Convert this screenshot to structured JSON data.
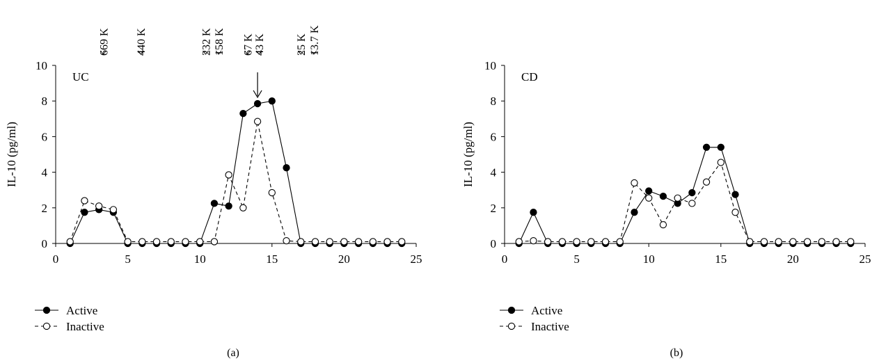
{
  "chart_data": [
    {
      "type": "line",
      "panel_tag": "UC",
      "caption": "(a)",
      "ylabel": "IL-10 (pg/ml)",
      "xlabel": "",
      "xlim": [
        0,
        25
      ],
      "ylim": [
        0,
        10
      ],
      "x_ticks": [
        0,
        5,
        10,
        15,
        20,
        25
      ],
      "y_ticks": [
        0,
        2,
        4,
        6,
        8,
        10
      ],
      "grid": false,
      "legend_position": "bottom-left",
      "series": [
        {
          "name": "Active",
          "style": "solid",
          "marker": "filled-circle",
          "x": [
            1,
            2,
            3,
            4,
            5,
            6,
            7,
            8,
            9,
            10,
            11,
            12,
            13,
            14,
            15,
            16,
            17,
            18,
            19,
            20,
            21,
            22,
            23,
            24
          ],
          "y": [
            0,
            1.75,
            1.9,
            1.75,
            0,
            0,
            0,
            0,
            0,
            0,
            2.25,
            2.1,
            7.3,
            7.85,
            8.0,
            4.25,
            0,
            0,
            0,
            0,
            0,
            0,
            0,
            0
          ]
        },
        {
          "name": "Inactive",
          "style": "dashed",
          "marker": "open-circle",
          "x": [
            1,
            2,
            3,
            4,
            5,
            6,
            7,
            8,
            9,
            10,
            11,
            12,
            13,
            14,
            15,
            16,
            17,
            18,
            19,
            20,
            21,
            22,
            23,
            24
          ],
          "y": [
            0.1,
            2.4,
            2.1,
            1.9,
            0.1,
            0.1,
            0.1,
            0.1,
            0.1,
            0.1,
            0.1,
            3.85,
            2.0,
            6.85,
            2.85,
            0.15,
            0.1,
            0.1,
            0.1,
            0.1,
            0.1,
            0.1,
            0.1,
            0.1
          ]
        }
      ],
      "markers": [
        {
          "label": "669 K",
          "x": 3.3
        },
        {
          "label": "440 K",
          "x": 5.9
        },
        {
          "label": "232 K",
          "x": 10.4
        },
        {
          "label": "158 K",
          "x": 11.3
        },
        {
          "label": "67 K",
          "x": 13.3
        },
        {
          "label": "43 K",
          "x": 14.1
        },
        {
          "label": "25 K",
          "x": 17.0
        },
        {
          "label": "13.7 K",
          "x": 17.9
        }
      ],
      "arrow_x": 14.0
    },
    {
      "type": "line",
      "panel_tag": "CD",
      "caption": "(b)",
      "ylabel": "IL-10 (pg/ml)",
      "xlabel": "",
      "xlim": [
        0,
        25
      ],
      "ylim": [
        0,
        10
      ],
      "x_ticks": [
        0,
        5,
        10,
        15,
        20,
        25
      ],
      "y_ticks": [
        0,
        2,
        4,
        6,
        8,
        10
      ],
      "grid": false,
      "legend_position": "bottom-left",
      "series": [
        {
          "name": "Active",
          "style": "solid",
          "marker": "filled-circle",
          "x": [
            1,
            2,
            3,
            4,
            5,
            6,
            7,
            8,
            9,
            10,
            11,
            12,
            13,
            14,
            15,
            16,
            17,
            18,
            19,
            20,
            21,
            22,
            23,
            24
          ],
          "y": [
            0,
            1.75,
            0,
            0,
            0,
            0,
            0,
            0,
            1.75,
            2.95,
            2.65,
            2.25,
            2.85,
            5.4,
            5.4,
            2.75,
            0,
            0,
            0,
            0,
            0,
            0,
            0,
            0
          ]
        },
        {
          "name": "Inactive",
          "style": "dashed",
          "marker": "open-circle",
          "x": [
            1,
            2,
            3,
            4,
            5,
            6,
            7,
            8,
            9,
            10,
            11,
            12,
            13,
            14,
            15,
            16,
            17,
            18,
            19,
            20,
            21,
            22,
            23,
            24
          ],
          "y": [
            0.1,
            0.15,
            0.1,
            0.1,
            0.1,
            0.1,
            0.1,
            0.1,
            3.4,
            2.55,
            1.05,
            2.55,
            2.25,
            3.45,
            4.55,
            1.75,
            0.1,
            0.1,
            0.1,
            0.1,
            0.1,
            0.1,
            0.1,
            0.1
          ]
        }
      ],
      "markers": []
    }
  ]
}
